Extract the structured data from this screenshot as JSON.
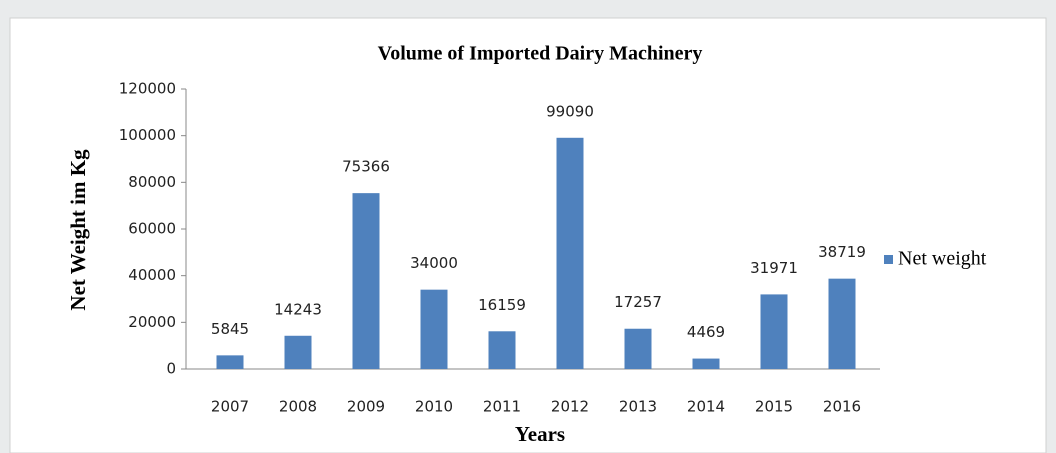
{
  "chart_data": {
    "type": "bar",
    "title": "Volume  of Imported Dairy Machinery",
    "x_label": "Years",
    "y_label": "Net Weight im Kg",
    "categories": [
      "2007",
      "2008",
      "2009",
      "2010",
      "2011",
      "2012",
      "2013",
      "2014",
      "2015",
      "2016"
    ],
    "series": [
      {
        "name": "Net weight",
        "color": "#4f81bd",
        "values": [
          5845,
          14243,
          75366,
          34000,
          16159,
          99090,
          17257,
          4469,
          31971,
          38719
        ]
      }
    ],
    "ylim": [
      0,
      120000
    ],
    "yticks": [
      0,
      20000,
      40000,
      60000,
      80000,
      100000,
      120000
    ],
    "grid": false,
    "legend": "right"
  }
}
